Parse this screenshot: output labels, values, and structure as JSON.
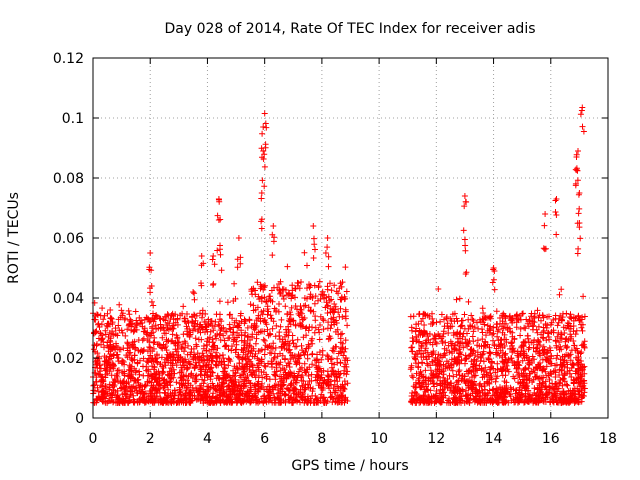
{
  "chart_data": {
    "type": "scatter",
    "title": "Day 028 of 2014, Rate Of TEC Index for receiver adis",
    "xlabel": "GPS time / hours",
    "ylabel": "ROTI / TECUs",
    "xlim": [
      0,
      18
    ],
    "ylim": [
      0,
      0.12
    ],
    "x_ticks": [
      0,
      2,
      4,
      6,
      8,
      10,
      12,
      14,
      16,
      18
    ],
    "y_ticks": [
      0,
      0.02,
      0.04,
      0.06,
      0.08,
      0.1,
      0.12
    ],
    "x_tick_labels": [
      "0",
      "2",
      "4",
      "6",
      "8",
      "10",
      "12",
      "14",
      "16",
      "18"
    ],
    "y_tick_labels": [
      "0",
      "0.02",
      "0.04",
      "0.06",
      "0.08",
      "0.1",
      "0.12"
    ],
    "grid": true,
    "marker": "+",
    "color": "#ff0000",
    "series": [
      {
        "name": "ROTI",
        "segments": [
          {
            "x_range": [
              0,
              8.9
            ],
            "typical_range": [
              0.005,
              0.035
            ]
          },
          {
            "x_range": [
              11.1,
              17.2
            ],
            "typical_range": [
              0.005,
              0.035
            ]
          }
        ],
        "peaks": [
          {
            "x": 0.6,
            "y": 0.036
          },
          {
            "x": 2.0,
            "y": 0.055
          },
          {
            "x": 2.05,
            "y": 0.044
          },
          {
            "x": 3.5,
            "y": 0.042
          },
          {
            "x": 3.8,
            "y": 0.054
          },
          {
            "x": 4.2,
            "y": 0.054
          },
          {
            "x": 4.4,
            "y": 0.073
          },
          {
            "x": 4.4,
            "y": 0.066
          },
          {
            "x": 5.1,
            "y": 0.06
          },
          {
            "x": 5.9,
            "y": 0.075
          },
          {
            "x": 5.95,
            "y": 0.089
          },
          {
            "x": 5.95,
            "y": 0.097
          },
          {
            "x": 6.0,
            "y": 0.1015
          },
          {
            "x": 6.3,
            "y": 0.064
          },
          {
            "x": 7.7,
            "y": 0.064
          },
          {
            "x": 8.2,
            "y": 0.06
          },
          {
            "x": 13.0,
            "y": 0.074
          },
          {
            "x": 13.0,
            "y": 0.0595
          },
          {
            "x": 14.0,
            "y": 0.05
          },
          {
            "x": 15.8,
            "y": 0.068
          },
          {
            "x": 16.2,
            "y": 0.073
          },
          {
            "x": 16.9,
            "y": 0.087
          },
          {
            "x": 16.95,
            "y": 0.089
          },
          {
            "x": 17.1,
            "y": 0.1035
          },
          {
            "x": 17.0,
            "y": 0.075
          },
          {
            "x": 17.0,
            "y": 0.065
          }
        ]
      }
    ]
  }
}
